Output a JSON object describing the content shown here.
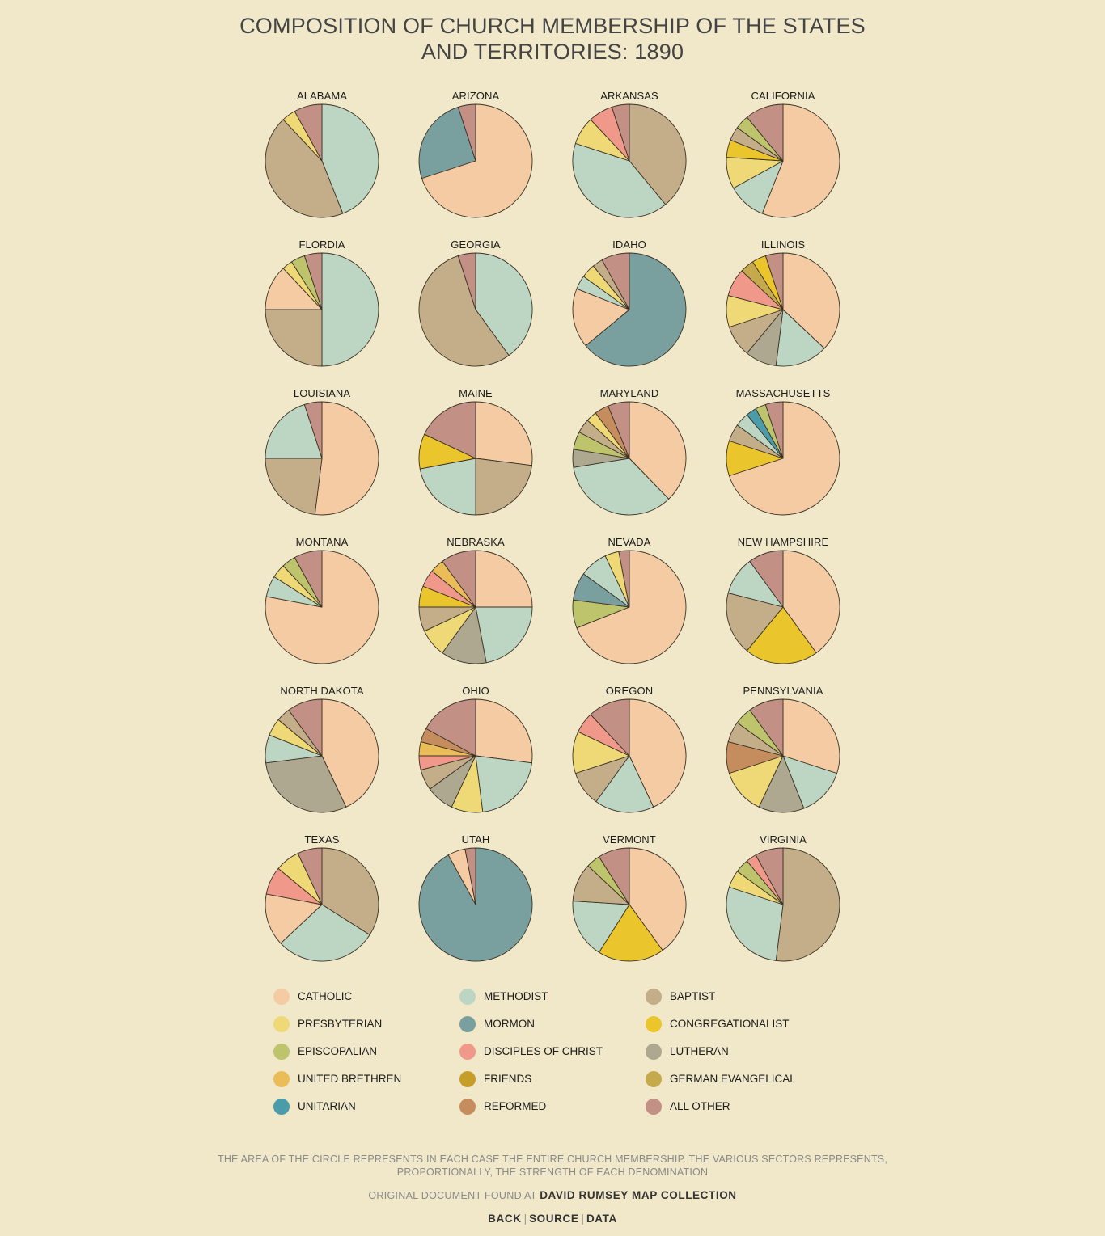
{
  "title": "COMPOSITION OF CHURCH MEMBERSHIP OF THE STATES AND TERRITORIES: 1890",
  "footnote": "THE AREA OF THE CIRCLE REPRESENTS IN EACH CASE THE ENTIRE CHURCH MEMBERSHIP. THE VARIOUS SECTORS REPRESENTS, PROPORTIONALLY, THE STRENGTH OF EACH DENOMINATION",
  "credit": {
    "prefix": "ORIGINAL DOCUMENT FOUND AT",
    "link": "DAVID RUMSEY MAP COLLECTION"
  },
  "links": {
    "back": "BACK",
    "source": "SOURCE",
    "data": "DATA",
    "separator": "|"
  },
  "colors": {
    "CATHOLIC": "#f4cba3",
    "METHODIST": "#bdd6c3",
    "BAPTIST": "#c4ad89",
    "PRESBYTERIAN": "#efd976",
    "MORMON": "#799f9e",
    "CONGREGATIONALIST": "#ebc52c",
    "EPISCOPALIAN": "#bdc46c",
    "DISCIPLES OF CHRIST": "#f0998a",
    "LUTHERAN": "#aea891",
    "UNITED BRETHREN": "#ebbd58",
    "FRIENDS": "#c69e27",
    "GERMAN EVANGELICAL": "#c4aa4d",
    "UNITARIAN": "#4b9cab",
    "REFORMED": "#c58d5e",
    "ALL OTHER": "#c29085"
  },
  "chart_data": {
    "type": "pie",
    "title": "COMPOSITION OF CHURCH MEMBERSHIP OF THE STATES AND TERRITORIES: 1890",
    "legend": [
      "CATHOLIC",
      "METHODIST",
      "BAPTIST",
      "PRESBYTERIAN",
      "MORMON",
      "CONGREGATIONALIST",
      "EPISCOPALIAN",
      "DISCIPLES OF CHRIST",
      "LUTHERAN",
      "UNITED BRETHREN",
      "FRIENDS",
      "GERMAN EVANGELICAL",
      "UNITARIAN",
      "REFORMED",
      "ALL OTHER"
    ],
    "legend_placement": "bottom",
    "states": [
      {
        "name": "ALABAMA",
        "slices": [
          [
            "METHODIST",
            44
          ],
          [
            "BAPTIST",
            44
          ],
          [
            "PRESBYTERIAN",
            4
          ],
          [
            "ALL OTHER",
            8
          ]
        ]
      },
      {
        "name": "ARIZONA",
        "slices": [
          [
            "CATHOLIC",
            70
          ],
          [
            "MORMON",
            25
          ],
          [
            "ALL OTHER",
            5
          ]
        ]
      },
      {
        "name": "ARKANSAS",
        "slices": [
          [
            "BAPTIST",
            39
          ],
          [
            "METHODIST",
            41
          ],
          [
            "PRESBYTERIAN",
            8
          ],
          [
            "DISCIPLES OF CHRIST",
            7
          ],
          [
            "ALL OTHER",
            5
          ]
        ]
      },
      {
        "name": "CALIFORNIA",
        "slices": [
          [
            "CATHOLIC",
            56
          ],
          [
            "METHODIST",
            11
          ],
          [
            "PRESBYTERIAN",
            9
          ],
          [
            "CONGREGATIONALIST",
            5
          ],
          [
            "BAPTIST",
            4
          ],
          [
            "EPISCOPALIAN",
            4
          ],
          [
            "ALL OTHER",
            11
          ]
        ]
      },
      {
        "name": "FLORDIA",
        "slices": [
          [
            "METHODIST",
            50
          ],
          [
            "BAPTIST",
            25
          ],
          [
            "CATHOLIC",
            13
          ],
          [
            "PRESBYTERIAN",
            3
          ],
          [
            "EPISCOPALIAN",
            4
          ],
          [
            "ALL OTHER",
            5
          ]
        ]
      },
      {
        "name": "GEORGIA",
        "slices": [
          [
            "METHODIST",
            40
          ],
          [
            "BAPTIST",
            55
          ],
          [
            "ALL OTHER",
            5
          ]
        ]
      },
      {
        "name": "IDAHO",
        "slices": [
          [
            "MORMON",
            64
          ],
          [
            "CATHOLIC",
            17
          ],
          [
            "METHODIST",
            4
          ],
          [
            "PRESBYTERIAN",
            4
          ],
          [
            "BAPTIST",
            3
          ],
          [
            "ALL OTHER",
            8
          ]
        ]
      },
      {
        "name": "ILLINOIS",
        "slices": [
          [
            "CATHOLIC",
            37
          ],
          [
            "METHODIST",
            15
          ],
          [
            "LUTHERAN",
            9
          ],
          [
            "BAPTIST",
            9
          ],
          [
            "PRESBYTERIAN",
            9
          ],
          [
            "DISCIPLES OF CHRIST",
            8
          ],
          [
            "GERMAN EVANGELICAL",
            4
          ],
          [
            "CONGREGATIONALIST",
            4
          ],
          [
            "ALL OTHER",
            5
          ]
        ]
      },
      {
        "name": "LOUISIANA",
        "slices": [
          [
            "CATHOLIC",
            52
          ],
          [
            "BAPTIST",
            23
          ],
          [
            "METHODIST",
            20
          ],
          [
            "ALL OTHER",
            5
          ]
        ]
      },
      {
        "name": "MAINE",
        "slices": [
          [
            "CATHOLIC",
            27
          ],
          [
            "BAPTIST",
            23
          ],
          [
            "METHODIST",
            22
          ],
          [
            "CONGREGATIONALIST",
            10
          ],
          [
            "ALL OTHER",
            18
          ]
        ]
      },
      {
        "name": "MARYLAND",
        "slices": [
          [
            "CATHOLIC",
            37
          ],
          [
            "METHODIST",
            34
          ],
          [
            "LUTHERAN",
            5
          ],
          [
            "EPISCOPALIAN",
            5
          ],
          [
            "BAPTIST",
            4
          ],
          [
            "PRESBYTERIAN",
            3
          ],
          [
            "REFORMED",
            4
          ],
          [
            "ALL OTHER",
            6
          ]
        ]
      },
      {
        "name": "MASSACHUSETTS",
        "slices": [
          [
            "CATHOLIC",
            70
          ],
          [
            "CONGREGATIONALIST",
            10
          ],
          [
            "BAPTIST",
            5
          ],
          [
            "METHODIST",
            4
          ],
          [
            "UNITARIAN",
            3
          ],
          [
            "EPISCOPALIAN",
            3
          ],
          [
            "ALL OTHER",
            5
          ]
        ]
      },
      {
        "name": "MONTANA",
        "slices": [
          [
            "CATHOLIC",
            78
          ],
          [
            "METHODIST",
            6
          ],
          [
            "PRESBYTERIAN",
            4
          ],
          [
            "EPISCOPALIAN",
            4
          ],
          [
            "ALL OTHER",
            8
          ]
        ]
      },
      {
        "name": "NEBRASKA",
        "slices": [
          [
            "CATHOLIC",
            25
          ],
          [
            "METHODIST",
            22
          ],
          [
            "LUTHERAN",
            13
          ],
          [
            "PRESBYTERIAN",
            8
          ],
          [
            "BAPTIST",
            7
          ],
          [
            "CONGREGATIONALIST",
            6
          ],
          [
            "DISCIPLES OF CHRIST",
            5
          ],
          [
            "UNITED BRETHREN",
            4
          ],
          [
            "ALL OTHER",
            10
          ]
        ]
      },
      {
        "name": "NEVADA",
        "slices": [
          [
            "CATHOLIC",
            69
          ],
          [
            "EPISCOPALIAN",
            8
          ],
          [
            "MORMON",
            8
          ],
          [
            "METHODIST",
            8
          ],
          [
            "PRESBYTERIAN",
            4
          ],
          [
            "ALL OTHER",
            3
          ]
        ]
      },
      {
        "name": "NEW HAMPSHIRE",
        "slices": [
          [
            "CATHOLIC",
            40
          ],
          [
            "CONGREGATIONALIST",
            21
          ],
          [
            "BAPTIST",
            18
          ],
          [
            "METHODIST",
            11
          ],
          [
            "ALL OTHER",
            10
          ]
        ]
      },
      {
        "name": "NORTH DAKOTA",
        "slices": [
          [
            "CATHOLIC",
            43
          ],
          [
            "LUTHERAN",
            30
          ],
          [
            "METHODIST",
            8
          ],
          [
            "PRESBYTERIAN",
            5
          ],
          [
            "BAPTIST",
            4
          ],
          [
            "ALL OTHER",
            10
          ]
        ]
      },
      {
        "name": "OHIO",
        "slices": [
          [
            "CATHOLIC",
            27
          ],
          [
            "METHODIST",
            21
          ],
          [
            "PRESBYTERIAN",
            9
          ],
          [
            "LUTHERAN",
            8
          ],
          [
            "BAPTIST",
            6
          ],
          [
            "DISCIPLES OF CHRIST",
            4
          ],
          [
            "UNITED BRETHREN",
            4
          ],
          [
            "REFORMED",
            4
          ],
          [
            "ALL OTHER",
            17
          ]
        ]
      },
      {
        "name": "OREGON",
        "slices": [
          [
            "CATHOLIC",
            43
          ],
          [
            "METHODIST",
            17
          ],
          [
            "BAPTIST",
            10
          ],
          [
            "PRESBYTERIAN",
            12
          ],
          [
            "DISCIPLES OF CHRIST",
            6
          ],
          [
            "ALL OTHER",
            12
          ]
        ]
      },
      {
        "name": "PENNSYLVANIA",
        "slices": [
          [
            "CATHOLIC",
            30
          ],
          [
            "METHODIST",
            14
          ],
          [
            "LUTHERAN",
            13
          ],
          [
            "PRESBYTERIAN",
            13
          ],
          [
            "REFORMED",
            9
          ],
          [
            "BAPTIST",
            6
          ],
          [
            "EPISCOPALIAN",
            5
          ],
          [
            "ALL OTHER",
            10
          ]
        ]
      },
      {
        "name": "TEXAS",
        "slices": [
          [
            "BAPTIST",
            34
          ],
          [
            "METHODIST",
            29
          ],
          [
            "CATHOLIC",
            15
          ],
          [
            "DISCIPLES OF CHRIST",
            8
          ],
          [
            "PRESBYTERIAN",
            7
          ],
          [
            "ALL OTHER",
            7
          ]
        ]
      },
      {
        "name": "UTAH",
        "slices": [
          [
            "MORMON",
            92
          ],
          [
            "CATHOLIC",
            5
          ],
          [
            "ALL OTHER",
            3
          ]
        ]
      },
      {
        "name": "VERMONT",
        "slices": [
          [
            "CATHOLIC",
            40
          ],
          [
            "CONGREGATIONALIST",
            19
          ],
          [
            "METHODIST",
            17
          ],
          [
            "BAPTIST",
            11
          ],
          [
            "EPISCOPALIAN",
            4
          ],
          [
            "ALL OTHER",
            9
          ]
        ]
      },
      {
        "name": "VIRGINIA",
        "slices": [
          [
            "BAPTIST",
            52
          ],
          [
            "METHODIST",
            28
          ],
          [
            "PRESBYTERIAN",
            5
          ],
          [
            "EPISCOPALIAN",
            4
          ],
          [
            "DISCIPLES OF CHRIST",
            3
          ],
          [
            "ALL OTHER",
            8
          ]
        ]
      }
    ]
  }
}
